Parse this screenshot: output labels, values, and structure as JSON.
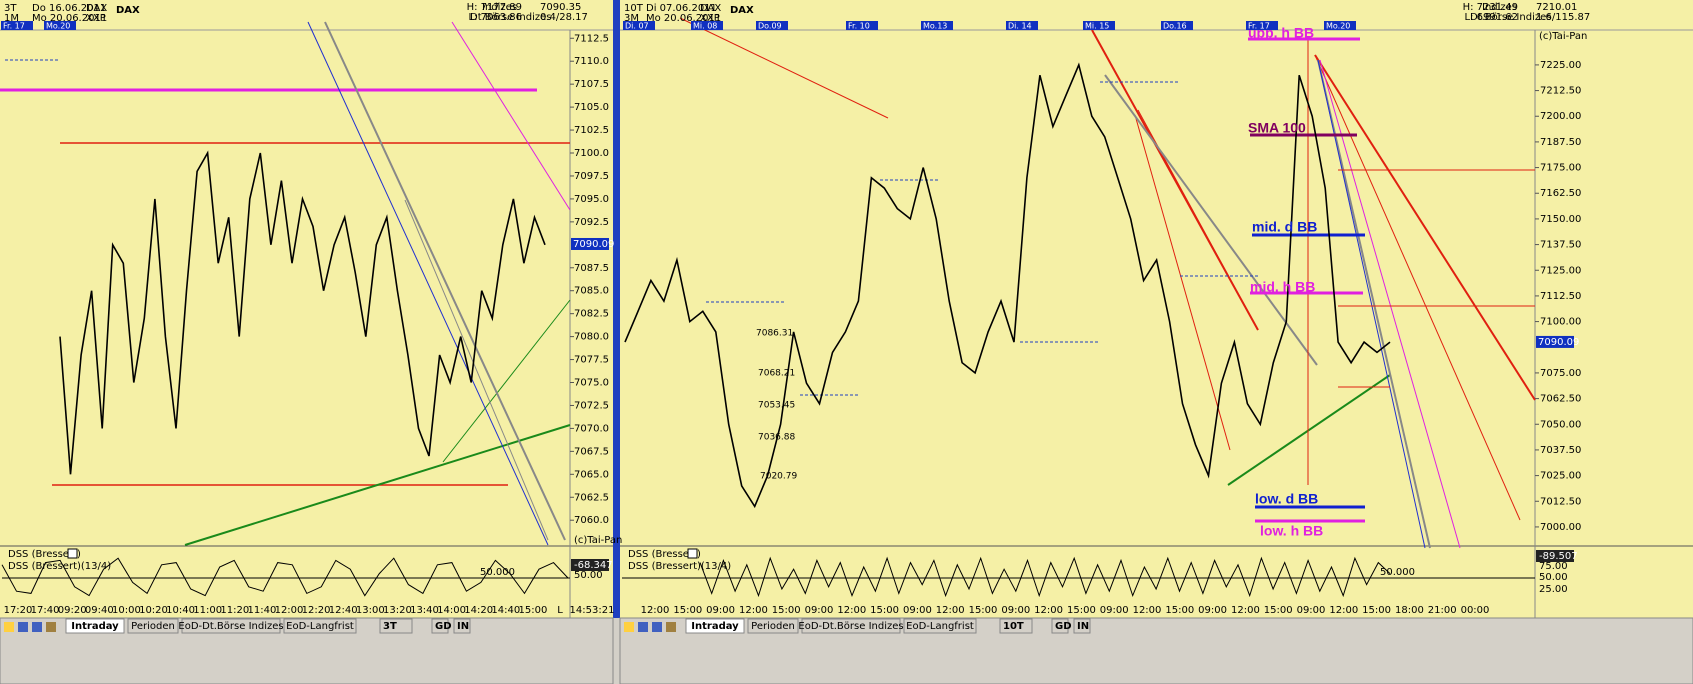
{
  "left_panel": {
    "header": {
      "period": "3T",
      "from": "Do 16.06.2011",
      "symbol": "DAX",
      "resolution": "1M",
      "to": "Mo 20.06.2011",
      "exchange": "XXP",
      "name": "DAX",
      "group": "Indizes",
      "market": "Dt.Börse Indizes",
      "high": "H: 7177.89",
      "low": "L: 7063.86",
      "last": "7090.35",
      "change": "0.4/28.17"
    },
    "day_labels": [
      "Fr. 17",
      "Mo.20"
    ],
    "price": {
      "ylim": [
        7057.3,
        7113.4
      ],
      "yticks": [
        {
          "value": 7060,
          "label": "7060.0"
        },
        {
          "value": 7062.5,
          "label": "7062.5"
        },
        {
          "value": 7065,
          "label": "7065.0"
        },
        {
          "value": 7067.5,
          "label": "7067.5"
        },
        {
          "value": 7070,
          "label": "7070.0"
        },
        {
          "value": 7072.5,
          "label": "7072.5"
        },
        {
          "value": 7075,
          "label": "7075.0"
        },
        {
          "value": 7077.5,
          "label": "7077.5"
        },
        {
          "value": 7080,
          "label": "7080.0"
        },
        {
          "value": 7082.5,
          "label": "7082.5"
        },
        {
          "value": 7085,
          "label": "7085.0"
        },
        {
          "value": 7087.5,
          "label": "7087.5"
        },
        {
          "value": 7092.5,
          "label": "7092.5"
        },
        {
          "value": 7095,
          "label": "7095.0"
        },
        {
          "value": 7097.5,
          "label": "7097.5"
        },
        {
          "value": 7100,
          "label": "7100.0"
        },
        {
          "value": 7102.5,
          "label": "7102.5"
        },
        {
          "value": 7105,
          "label": "7105.0"
        },
        {
          "value": 7107.5,
          "label": "7107.5"
        },
        {
          "value": 7110,
          "label": "7110.0"
        },
        {
          "value": 7112.5,
          "label": "7112.5"
        }
      ],
      "values": [
        7080,
        7065,
        7078,
        7085,
        7070,
        7090,
        7088,
        7075,
        7082,
        7095,
        7080,
        7070,
        7085,
        7098,
        7100,
        7088,
        7093,
        7080,
        7095,
        7100,
        7090,
        7097,
        7088,
        7095,
        7092,
        7085,
        7090,
        7093,
        7087,
        7080,
        7090,
        7093,
        7085,
        7078,
        7070,
        7067,
        7078,
        7075,
        7080,
        7075,
        7085,
        7082,
        7090,
        7095,
        7088,
        7093,
        7090
      ]
    },
    "current_price": "7090.09",
    "copyright": "(c)Tai-Pan",
    "oscillator": {
      "title": "DSS (Bressert)",
      "subtitle": "DSS (Bressert)(13/4)",
      "level_label": "50.000",
      "axis_labels": [
        "-68.347",
        "50.00"
      ],
      "ylim": [
        0,
        100
      ],
      "values": [
        80,
        20,
        15,
        85,
        90,
        30,
        10,
        70,
        95,
        40,
        15,
        80,
        85,
        25,
        10,
        75,
        90,
        30,
        20,
        85,
        80,
        15,
        30,
        90,
        70,
        10,
        60,
        95,
        35,
        15,
        80,
        85,
        20,
        40,
        90,
        60,
        15,
        70,
        85,
        50
      ]
    },
    "time_labels": [
      "17:20",
      "17:40",
      "09:20",
      "09:40",
      "10:00",
      "10:20",
      "10:40",
      "11:00",
      "11:20",
      "11:40",
      "12:00",
      "12:20",
      "12:40",
      "13:00",
      "13:20",
      "13:40",
      "14:00",
      "14:20",
      "14:40",
      "15:00",
      "L"
    ],
    "time_stamp": "14:53:21",
    "tabs": [
      "Intraday",
      "Perioden",
      "EoD-Dt.Börse Indizes",
      "EoD-Langfrist"
    ],
    "toolbar": [
      "3T",
      "GD",
      "IN"
    ]
  },
  "right_panel": {
    "header": {
      "period": "10T",
      "from": "Di 07.06.2011",
      "symbol": "DAX",
      "resolution": "3M",
      "to": "Mo 20.06.2011",
      "exchange": "XXP",
      "name": "DAX",
      "group": "Indizes",
      "market": "Dt.Börse Indizes",
      "high": "H: 7231.49",
      "low": "L: 6991.62",
      "last": "7210.01",
      "change": "1.6/115.87"
    },
    "day_labels": [
      "Di. 07",
      "Mi. 08",
      "Do.09",
      "Fr. 10",
      "Mo.13",
      "Di. 14",
      "Mi. 15",
      "Do.16",
      "Fr. 17",
      "Mo.20"
    ],
    "price": {
      "ylim": [
        6991.2,
        7242
      ],
      "yticks": [
        {
          "value": 7000,
          "label": "7000.00"
        },
        {
          "value": 7012.5,
          "label": "7012.50"
        },
        {
          "value": 7025,
          "label": "7025.00"
        },
        {
          "value": 7037.5,
          "label": "7037.50"
        },
        {
          "value": 7050,
          "label": "7050.00"
        },
        {
          "value": 7062.5,
          "label": "7062.50"
        },
        {
          "value": 7075,
          "label": "7075.00"
        },
        {
          "value": 7100,
          "label": "7100.00"
        },
        {
          "value": 7112.5,
          "label": "7112.50"
        },
        {
          "value": 7125,
          "label": "7125.00"
        },
        {
          "value": 7137.5,
          "label": "7137.50"
        },
        {
          "value": 7150,
          "label": "7150.00"
        },
        {
          "value": 7162.5,
          "label": "7162.50"
        },
        {
          "value": 7175,
          "label": "7175.00"
        },
        {
          "value": 7187.5,
          "label": "7187.50"
        },
        {
          "value": 7200,
          "label": "7200.00"
        },
        {
          "value": 7212.5,
          "label": "7212.50"
        },
        {
          "value": 7225,
          "label": "7225.00"
        }
      ],
      "values": [
        7090,
        7105,
        7120,
        7110,
        7130,
        7100,
        7105,
        7095,
        7050,
        7020,
        7010,
        7025,
        7050,
        7095,
        7070,
        7060,
        7085,
        7095,
        7110,
        7170,
        7165,
        7155,
        7150,
        7175,
        7150,
        7110,
        7080,
        7075,
        7095,
        7110,
        7090,
        7170,
        7220,
        7195,
        7210,
        7225,
        7200,
        7190,
        7170,
        7150,
        7120,
        7130,
        7100,
        7060,
        7040,
        7025,
        7070,
        7090,
        7060,
        7050,
        7080,
        7100,
        7220,
        7200,
        7165,
        7090,
        7080,
        7090,
        7085,
        7090
      ]
    },
    "current_price": "7090.09",
    "copyright": "(c)Tai-Pan",
    "annotations": [
      "upp. h BB",
      "SMA 100",
      "mid. d BB",
      "mid. h BB",
      "low. d BB",
      "low. h BB"
    ],
    "price_labels": [
      "7086.31",
      "7068.21",
      "7053.45",
      "7036.88",
      "7020.79"
    ],
    "oscillator": {
      "title": "DSS (Bressert)",
      "subtitle": "DSS (Bressert)(13/4)",
      "level_label": "50.000",
      "axis_labels": [
        "-89.507",
        "75.00",
        "50.00",
        "25.00"
      ],
      "ylim": [
        0,
        100
      ],
      "values": [
        85,
        15,
        90,
        20,
        80,
        10,
        95,
        25,
        70,
        15,
        90,
        30,
        85,
        10,
        75,
        20,
        95,
        15,
        85,
        35,
        90,
        10,
        80,
        25,
        95,
        15,
        70,
        20,
        90,
        10,
        85,
        30,
        95,
        15,
        80,
        20,
        90,
        10,
        75,
        25,
        95,
        20,
        85,
        15,
        90,
        30,
        80,
        10,
        95,
        25,
        85,
        15,
        90,
        20,
        75,
        10,
        95,
        35,
        85,
        60
      ]
    },
    "time_labels": [
      "12:00",
      "15:00",
      "09:00",
      "12:00",
      "15:00",
      "09:00",
      "12:00",
      "15:00",
      "09:00",
      "12:00",
      "15:00",
      "09:00",
      "12:00",
      "15:00",
      "09:00",
      "12:00",
      "15:00",
      "09:00",
      "12:00",
      "15:00",
      "09:00",
      "12:00",
      "15:00",
      "18:00",
      "21:00",
      "00:00"
    ],
    "tabs": [
      "Intraday",
      "Perioden",
      "EoD-Dt.Börse Indizes",
      "EoD-Langfrist"
    ],
    "toolbar": [
      "10T",
      "GD",
      "IN"
    ]
  }
}
